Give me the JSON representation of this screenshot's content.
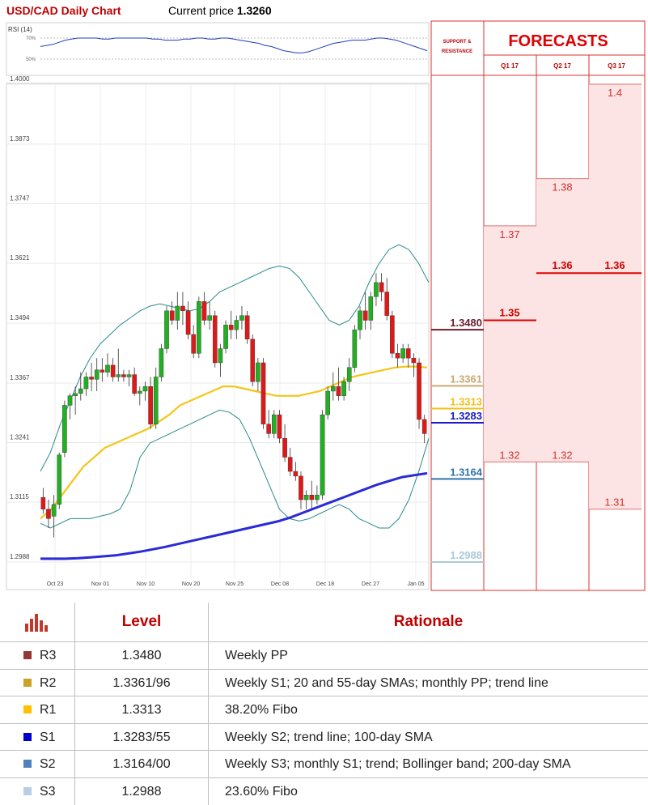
{
  "header": {
    "title": "USD/CAD Daily Chart",
    "price_label": "Current price",
    "price_value": "1.3260"
  },
  "rsi": {
    "label": "RSI (14)",
    "levels": [
      "70%",
      "50%"
    ],
    "values": [
      62,
      63,
      64,
      66,
      68,
      69,
      70,
      70,
      70,
      70,
      69,
      69,
      70,
      70,
      70,
      70,
      70,
      70,
      69,
      69,
      68,
      68,
      68,
      69,
      69,
      70,
      70,
      69,
      69,
      70,
      70,
      69,
      68,
      67,
      66,
      65,
      63,
      62,
      60,
      58,
      57,
      56,
      56,
      57,
      59,
      61,
      63,
      65,
      66,
      67,
      68,
      68,
      68,
      69,
      70,
      70,
      69,
      68,
      66,
      64,
      62,
      60,
      58
    ]
  },
  "chart_data": {
    "type": "candlestick",
    "title": "USD/CAD Daily Chart",
    "x_ticks": [
      "Oct 23",
      "Nov 01",
      "Nov 10",
      "Nov 20",
      "Nov 25",
      "Dec 08",
      "Dec 18",
      "Dec 27",
      "Jan 05"
    ],
    "y_ticks": [
      "1.4000",
      "1.3873",
      "1.3747",
      "1.3621",
      "1.3494",
      "1.3367",
      "1.3241",
      "1.3115",
      "1.2988"
    ],
    "ylim": [
      1.2988,
      1.4
    ],
    "candles": [
      [
        1.3125,
        1.3145,
        1.309,
        1.31
      ],
      [
        1.31,
        1.312,
        1.306,
        1.308
      ],
      [
        1.3085,
        1.313,
        1.304,
        1.311
      ],
      [
        1.311,
        1.322,
        1.31,
        1.3215
      ],
      [
        1.322,
        1.333,
        1.321,
        1.332
      ],
      [
        1.332,
        1.3345,
        1.329,
        1.334
      ],
      [
        1.334,
        1.336,
        1.33,
        1.3345
      ],
      [
        1.3345,
        1.339,
        1.333,
        1.3355
      ],
      [
        1.3355,
        1.339,
        1.334,
        1.338
      ],
      [
        1.338,
        1.341,
        1.335,
        1.3375
      ],
      [
        1.3375,
        1.342,
        1.335,
        1.3395
      ],
      [
        1.3395,
        1.342,
        1.337,
        1.339
      ],
      [
        1.339,
        1.343,
        1.338,
        1.3405
      ],
      [
        1.3405,
        1.342,
        1.337,
        1.338
      ],
      [
        1.338,
        1.344,
        1.337,
        1.3385
      ],
      [
        1.3385,
        1.3395,
        1.337,
        1.338
      ],
      [
        1.338,
        1.3395,
        1.336,
        1.3385
      ],
      [
        1.3385,
        1.34,
        1.334,
        1.3345
      ],
      [
        1.3345,
        1.336,
        1.332,
        1.335
      ],
      [
        1.335,
        1.337,
        1.333,
        1.336
      ],
      [
        1.336,
        1.338,
        1.327,
        1.328
      ],
      [
        1.328,
        1.34,
        1.327,
        1.338
      ],
      [
        1.338,
        1.345,
        1.337,
        1.344
      ],
      [
        1.344,
        1.353,
        1.343,
        1.352
      ],
      [
        1.352,
        1.354,
        1.349,
        1.35
      ],
      [
        1.35,
        1.356,
        1.348,
        1.353
      ],
      [
        1.353,
        1.356,
        1.349,
        1.352
      ],
      [
        1.352,
        1.354,
        1.346,
        1.347
      ],
      [
        1.347,
        1.349,
        1.342,
        1.343
      ],
      [
        1.343,
        1.355,
        1.342,
        1.354
      ],
      [
        1.354,
        1.356,
        1.349,
        1.35
      ],
      [
        1.35,
        1.354,
        1.348,
        1.351
      ],
      [
        1.351,
        1.352,
        1.34,
        1.341
      ],
      [
        1.341,
        1.345,
        1.338,
        1.344
      ],
      [
        1.344,
        1.35,
        1.343,
        1.349
      ],
      [
        1.349,
        1.352,
        1.346,
        1.348
      ],
      [
        1.348,
        1.351,
        1.346,
        1.35
      ],
      [
        1.35,
        1.353,
        1.348,
        1.351
      ],
      [
        1.351,
        1.352,
        1.345,
        1.346
      ],
      [
        1.346,
        1.347,
        1.336,
        1.337
      ],
      [
        1.337,
        1.342,
        1.335,
        1.341
      ],
      [
        1.341,
        1.342,
        1.327,
        1.328
      ],
      [
        1.328,
        1.331,
        1.325,
        1.326
      ],
      [
        1.326,
        1.331,
        1.325,
        1.33
      ],
      [
        1.33,
        1.331,
        1.324,
        1.325
      ],
      [
        1.325,
        1.328,
        1.32,
        1.321
      ],
      [
        1.321,
        1.323,
        1.317,
        1.318
      ],
      [
        1.318,
        1.32,
        1.316,
        1.317
      ],
      [
        1.317,
        1.318,
        1.31,
        1.312
      ],
      [
        1.312,
        1.314,
        1.31,
        1.313
      ],
      [
        1.313,
        1.316,
        1.31,
        1.312
      ],
      [
        1.312,
        1.315,
        1.311,
        1.313
      ],
      [
        1.313,
        1.331,
        1.312,
        1.33
      ],
      [
        1.33,
        1.336,
        1.329,
        1.335
      ],
      [
        1.335,
        1.339,
        1.333,
        1.336
      ],
      [
        1.336,
        1.34,
        1.333,
        1.334
      ],
      [
        1.334,
        1.338,
        1.333,
        1.337
      ],
      [
        1.337,
        1.342,
        1.335,
        1.34
      ],
      [
        1.34,
        1.349,
        1.339,
        1.348
      ],
      [
        1.348,
        1.353,
        1.346,
        1.352
      ],
      [
        1.352,
        1.356,
        1.348,
        1.35
      ],
      [
        1.35,
        1.356,
        1.348,
        1.355
      ],
      [
        1.355,
        1.36,
        1.353,
        1.358
      ],
      [
        1.358,
        1.36,
        1.354,
        1.356
      ],
      [
        1.356,
        1.359,
        1.35,
        1.351
      ],
      [
        1.351,
        1.352,
        1.342,
        1.343
      ],
      [
        1.343,
        1.345,
        1.34,
        1.342
      ],
      [
        1.342,
        1.345,
        1.341,
        1.344
      ],
      [
        1.344,
        1.345,
        1.34,
        1.342
      ],
      [
        1.342,
        1.343,
        1.338,
        1.341
      ],
      [
        1.341,
        1.342,
        1.327,
        1.329
      ],
      [
        1.329,
        1.33,
        1.324,
        1.326
      ]
    ],
    "bollinger_upper": [
      1.318,
      1.322,
      1.328,
      1.333,
      1.338,
      1.342,
      1.345,
      1.347,
      1.349,
      1.3505,
      1.352,
      1.353,
      1.3535,
      1.353,
      1.3525,
      1.352,
      1.3525,
      1.354,
      1.356,
      1.357,
      1.358,
      1.359,
      1.36,
      1.361,
      1.3615,
      1.361,
      1.359,
      1.356,
      1.353,
      1.35,
      1.349,
      1.35,
      1.353,
      1.358,
      1.362,
      1.365,
      1.366,
      1.365,
      1.362,
      1.358
    ],
    "bollinger_lower": [
      1.307,
      1.306,
      1.307,
      1.308,
      1.308,
      1.308,
      1.3085,
      1.309,
      1.31,
      1.314,
      1.321,
      1.324,
      1.325,
      1.326,
      1.327,
      1.328,
      1.329,
      1.33,
      1.331,
      1.3305,
      1.329,
      1.325,
      1.32,
      1.315,
      1.31,
      1.308,
      1.3075,
      1.308,
      1.309,
      1.31,
      1.311,
      1.31,
      1.308,
      1.307,
      1.306,
      1.306,
      1.308,
      1.312,
      1.318,
      1.325
    ],
    "sma_yellow": [
      1.308,
      1.31,
      1.313,
      1.316,
      1.319,
      1.321,
      1.323,
      1.324,
      1.325,
      1.326,
      1.327,
      1.3285,
      1.33,
      1.332,
      1.333,
      1.334,
      1.335,
      1.336,
      1.336,
      1.3355,
      1.335,
      1.3345,
      1.334,
      1.334,
      1.334,
      1.3345,
      1.335,
      1.336,
      1.337,
      1.338,
      1.3385,
      1.339,
      1.3395,
      1.34,
      1.3402,
      1.3402,
      1.34
    ],
    "sma_blue": [
      1.2995,
      1.2995,
      1.2995,
      1.2996,
      1.2998,
      1.3,
      1.3002,
      1.3006,
      1.301,
      1.3015,
      1.302,
      1.3026,
      1.3032,
      1.3038,
      1.3044,
      1.305,
      1.3056,
      1.3062,
      1.3068,
      1.3074,
      1.3082,
      1.3092,
      1.3102,
      1.3112,
      1.3122,
      1.3132,
      1.3142,
      1.3152,
      1.316,
      1.3168,
      1.3172,
      1.3176
    ],
    "levels": [
      {
        "value": "1.3480",
        "color": "#6b1e2e"
      },
      {
        "value": "1.3361",
        "color": "#caa971"
      },
      {
        "value": "1.3313",
        "color": "#f0c018"
      },
      {
        "value": "1.3283",
        "color": "#1a1ac8"
      },
      {
        "value": "1.3164",
        "color": "#2e73a8"
      },
      {
        "value": "1.2988",
        "color": "#a9c9d9"
      }
    ]
  },
  "side": {
    "sr_title_1": "SUPPORT &",
    "sr_title_2": "RESISTANCE",
    "forecasts_title": "FORECASTS",
    "quarters": [
      "Q1 17",
      "Q2 17",
      "Q3 17"
    ],
    "forecasts": [
      {
        "quarter": "Q1 17",
        "high": "1.37",
        "mid": "1.35",
        "low": "1.32"
      },
      {
        "quarter": "Q2 17",
        "high": "1.38",
        "mid": "1.36",
        "low": "1.32"
      },
      {
        "quarter": "Q3 17",
        "high": "1.4",
        "mid": "1.36",
        "low": "1.31"
      }
    ]
  },
  "table": {
    "headers": {
      "level": "Level",
      "rationale": "Rationale"
    },
    "rows": [
      {
        "name": "R3",
        "level": "1.3480",
        "rationale": "Weekly PP",
        "color": "#953735"
      },
      {
        "name": "R2",
        "level": "1.3361/96",
        "rationale": "Weekly S1; 20 and 55-day SMAs; monthly PP; trend line",
        "color": "#c9a227"
      },
      {
        "name": "R1",
        "level": "1.3313",
        "rationale": "38.20% Fibo",
        "color": "#ffc000"
      },
      {
        "name": "S1",
        "level": "1.3283/55",
        "rationale": "Weekly S2; trend line; 100-day SMA",
        "color": "#0000cc"
      },
      {
        "name": "S2",
        "level": "1.3164/00",
        "rationale": "Weekly S3; monthly S1; trend; Bollinger band; 200-day SMA",
        "color": "#4f81bd"
      },
      {
        "name": "S3",
        "level": "1.2988",
        "rationale": "23.60% Fibo",
        "color": "#b9cde5"
      }
    ]
  }
}
